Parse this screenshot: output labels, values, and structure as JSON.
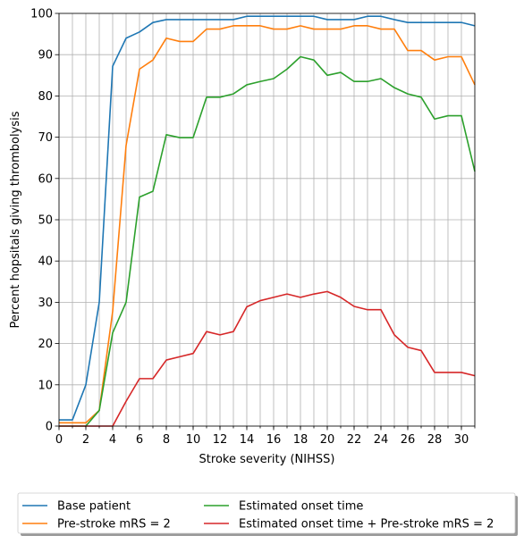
{
  "chart_data": {
    "type": "line",
    "title": "",
    "xlabel": "Stroke severity (NIHSS)",
    "ylabel": "Percent hopsitals giving thrombolysis",
    "xlim": [
      0,
      31
    ],
    "ylim": [
      0,
      100
    ],
    "x_ticks": [
      0,
      2,
      4,
      6,
      8,
      10,
      12,
      14,
      16,
      18,
      20,
      22,
      24,
      26,
      28,
      30
    ],
    "y_ticks": [
      0,
      10,
      20,
      30,
      40,
      50,
      60,
      70,
      80,
      90,
      100
    ],
    "grid": true,
    "legend_position": "below plot, two columns, with shadow",
    "x": [
      0,
      1,
      2,
      3,
      4,
      5,
      6,
      7,
      8,
      9,
      10,
      11,
      12,
      13,
      14,
      15,
      16,
      17,
      18,
      19,
      20,
      21,
      22,
      23,
      24,
      25,
      26,
      27,
      28,
      29,
      30,
      31
    ],
    "series": [
      {
        "name": "Base patient",
        "color": "#1f77b4",
        "values": [
          1.5,
          1.5,
          10,
          30,
          87.2,
          94,
          95.5,
          97.8,
          98.5,
          98.5,
          98.5,
          98.5,
          98.5,
          98.5,
          99.3,
          99.3,
          99.3,
          99.3,
          99.3,
          99.3,
          98.5,
          98.5,
          98.5,
          99.3,
          99.3,
          98.5,
          97.8,
          97.8,
          97.8,
          97.8,
          97.8,
          97
        ]
      },
      {
        "name": "Pre-stroke mRS = 2",
        "color": "#ff7f0e",
        "values": [
          0.8,
          0.8,
          0.8,
          3.8,
          27.8,
          68,
          86.5,
          88.7,
          94,
          93.2,
          93.2,
          96.2,
          96.2,
          97,
          97,
          97,
          96.2,
          96.2,
          97,
          96.2,
          96.2,
          96.2,
          97,
          97,
          96.2,
          96.2,
          91,
          91,
          88.7,
          89.5,
          89.5,
          82.7
        ]
      },
      {
        "name": "Estimated onset time",
        "color": "#2ca02c",
        "values": [
          0,
          0,
          0,
          3.8,
          22.6,
          30,
          55.5,
          56.9,
          70.6,
          69.9,
          69.9,
          79.7,
          79.7,
          80.5,
          82.7,
          83.5,
          84.2,
          86.5,
          89.5,
          88.7,
          85,
          85.7,
          83.5,
          83.5,
          84.2,
          82,
          80.5,
          79.7,
          74.4,
          75.2,
          75.2,
          61.7
        ]
      },
      {
        "name": "Estimated onset time + Pre-stroke mRS = 2",
        "color": "#d62728",
        "values": [
          0,
          0,
          0,
          0,
          0,
          6,
          11.5,
          11.5,
          16,
          16.8,
          17.6,
          22.9,
          22.1,
          22.9,
          28.9,
          30.4,
          31.2,
          32,
          31.2,
          32,
          32.6,
          31.2,
          29,
          28.2,
          28.2,
          22.1,
          19.1,
          18.3,
          13,
          13,
          13,
          12.2
        ]
      }
    ]
  }
}
